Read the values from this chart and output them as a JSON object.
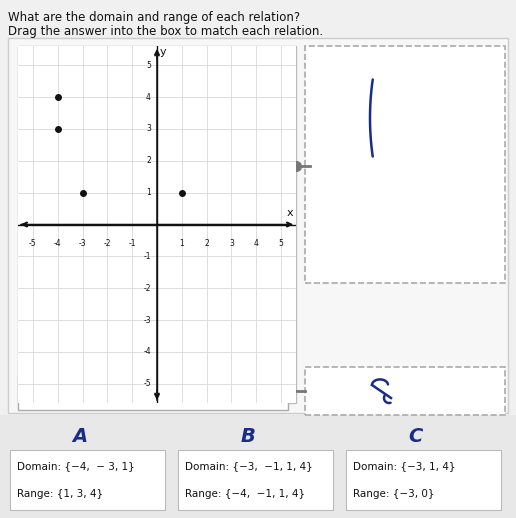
{
  "title_line1": "What are the domain and range of each relation?",
  "title_line2": "Drag the answer into the box to match each relation.",
  "plot_points": [
    [
      -4,
      3
    ],
    [
      -4,
      4
    ],
    [
      -3,
      1
    ],
    [
      1,
      1
    ]
  ],
  "relation_text": "{(−4, 3),  (−4, 4),  (−3, 1),  (1, 1)}",
  "answer_A_domain": "Domain: {−4,  − 3, 1}",
  "answer_A_range": "Range: {1, 3, 4}",
  "answer_B_domain": "Domain: {−3,  −1, 1, 4}",
  "answer_B_range": "Range: {−4,  −1, 1, 4}",
  "answer_C_domain": "Domain: {−3, 1, 4}",
  "answer_C_range": "Range: {−3, 0}",
  "bg_color": "#f0f0f0",
  "outer_panel_bg": "#f0f0f0",
  "inner_panel_bg": "#ffffff",
  "plot_bg": "#ffffff",
  "grid_color": "#d8d8d8",
  "axis_color": "#111111",
  "point_color": "#111111",
  "dashed_box_color": "#aaaaaa",
  "connector_color": "#777777",
  "hw_color": "#1a2c8a",
  "answer_box_bg": "#ffffff",
  "answer_box_border": "#bbbbbb",
  "answer_section_bg": "#e8e8e8",
  "text_color": "#111111"
}
